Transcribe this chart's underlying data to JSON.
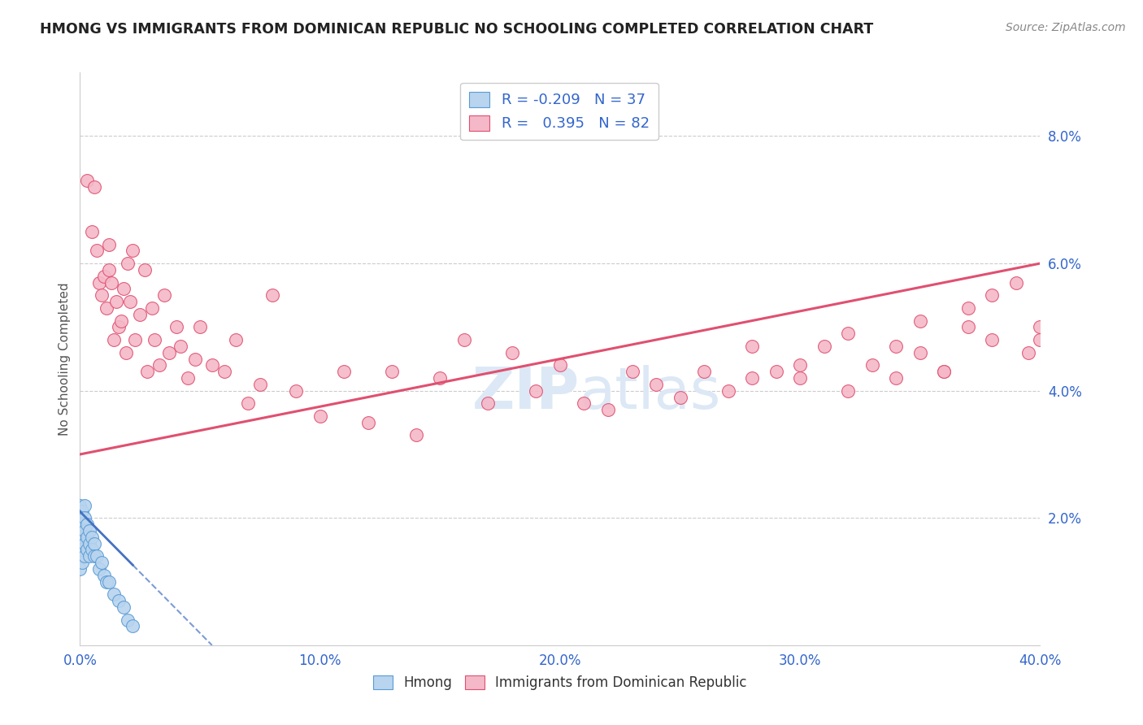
{
  "title": "HMONG VS IMMIGRANTS FROM DOMINICAN REPUBLIC NO SCHOOLING COMPLETED CORRELATION CHART",
  "source": "Source: ZipAtlas.com",
  "ylabel_label": "No Schooling Completed",
  "xlim": [
    0.0,
    0.4
  ],
  "ylim": [
    0.0,
    0.09
  ],
  "xticks": [
    0.0,
    0.1,
    0.2,
    0.3,
    0.4
  ],
  "xtick_labels": [
    "0.0%",
    "10.0%",
    "20.0%",
    "30.0%",
    "40.0%"
  ],
  "yticks": [
    0.0,
    0.02,
    0.04,
    0.06,
    0.08
  ],
  "ytick_labels": [
    "",
    "2.0%",
    "4.0%",
    "6.0%",
    "8.0%"
  ],
  "legend_R_hmong": "-0.209",
  "legend_N_hmong": "37",
  "legend_R_dom": "0.395",
  "legend_N_dom": "82",
  "hmong_fill": "#b8d4ee",
  "hmong_edge": "#5b9bd5",
  "dom_fill": "#f4b8c8",
  "dom_edge": "#e05070",
  "dom_line_color": "#e05070",
  "hmong_line_color": "#4472c4",
  "watermark_color": "#dce8f5",
  "bg_color": "#ffffff",
  "grid_color": "#cccccc",
  "tick_color": "#3366cc",
  "title_color": "#222222",
  "source_color": "#888888",
  "ylabel_color": "#555555",
  "dom_x": [
    0.003,
    0.005,
    0.006,
    0.007,
    0.008,
    0.009,
    0.01,
    0.011,
    0.012,
    0.012,
    0.013,
    0.014,
    0.015,
    0.016,
    0.017,
    0.018,
    0.019,
    0.02,
    0.021,
    0.022,
    0.023,
    0.025,
    0.027,
    0.028,
    0.03,
    0.031,
    0.033,
    0.035,
    0.037,
    0.04,
    0.042,
    0.045,
    0.048,
    0.05,
    0.055,
    0.06,
    0.065,
    0.07,
    0.075,
    0.08,
    0.09,
    0.1,
    0.11,
    0.12,
    0.13,
    0.14,
    0.15,
    0.16,
    0.17,
    0.18,
    0.19,
    0.2,
    0.21,
    0.22,
    0.23,
    0.24,
    0.25,
    0.26,
    0.27,
    0.28,
    0.29,
    0.3,
    0.31,
    0.32,
    0.33,
    0.34,
    0.35,
    0.36,
    0.37,
    0.38,
    0.39,
    0.4,
    0.4,
    0.395,
    0.38,
    0.37,
    0.36,
    0.35,
    0.34,
    0.32,
    0.3,
    0.28
  ],
  "dom_y": [
    0.073,
    0.065,
    0.072,
    0.062,
    0.057,
    0.055,
    0.058,
    0.053,
    0.063,
    0.059,
    0.057,
    0.048,
    0.054,
    0.05,
    0.051,
    0.056,
    0.046,
    0.06,
    0.054,
    0.062,
    0.048,
    0.052,
    0.059,
    0.043,
    0.053,
    0.048,
    0.044,
    0.055,
    0.046,
    0.05,
    0.047,
    0.042,
    0.045,
    0.05,
    0.044,
    0.043,
    0.048,
    0.038,
    0.041,
    0.055,
    0.04,
    0.036,
    0.043,
    0.035,
    0.043,
    0.033,
    0.042,
    0.048,
    0.038,
    0.046,
    0.04,
    0.044,
    0.038,
    0.037,
    0.043,
    0.041,
    0.039,
    0.043,
    0.04,
    0.047,
    0.043,
    0.042,
    0.047,
    0.04,
    0.044,
    0.042,
    0.046,
    0.043,
    0.05,
    0.048,
    0.057,
    0.05,
    0.048,
    0.046,
    0.055,
    0.053,
    0.043,
    0.051,
    0.047,
    0.049,
    0.044,
    0.042
  ],
  "hmong_x": [
    0.0,
    0.0,
    0.0,
    0.0,
    0.0,
    0.0,
    0.001,
    0.001,
    0.001,
    0.001,
    0.001,
    0.002,
    0.002,
    0.002,
    0.002,
    0.002,
    0.003,
    0.003,
    0.003,
    0.004,
    0.004,
    0.004,
    0.005,
    0.005,
    0.006,
    0.006,
    0.007,
    0.008,
    0.009,
    0.01,
    0.011,
    0.012,
    0.014,
    0.016,
    0.018,
    0.02,
    0.022
  ],
  "hmong_y": [
    0.02,
    0.018,
    0.016,
    0.014,
    0.012,
    0.022,
    0.021,
    0.019,
    0.017,
    0.015,
    0.013,
    0.022,
    0.02,
    0.018,
    0.016,
    0.014,
    0.019,
    0.017,
    0.015,
    0.018,
    0.016,
    0.014,
    0.017,
    0.015,
    0.016,
    0.014,
    0.014,
    0.012,
    0.013,
    0.011,
    0.01,
    0.01,
    0.008,
    0.007,
    0.006,
    0.004,
    0.003
  ],
  "dom_line_x": [
    0.0,
    0.4
  ],
  "dom_line_y": [
    0.03,
    0.06
  ],
  "hmong_line_x0": 0.0,
  "hmong_line_y0": 0.021,
  "hmong_line_x1": 0.055,
  "hmong_line_y1": 0.0
}
